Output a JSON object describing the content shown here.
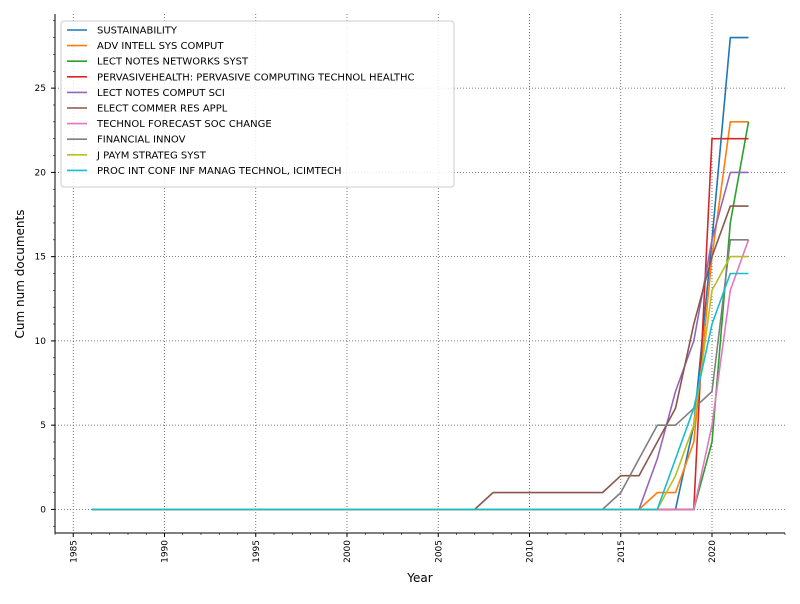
{
  "chart_data": {
    "type": "line",
    "title": "",
    "xlabel": "Year",
    "ylabel": "Cum num documents",
    "xlim": [
      1984,
      2024
    ],
    "ylim": [
      -1.4,
      29.4
    ],
    "xticks": [
      1985,
      1990,
      1995,
      2000,
      2005,
      2010,
      2015,
      2020
    ],
    "yticks": [
      0,
      5,
      10,
      15,
      20,
      25
    ],
    "grid": true,
    "legend_position": "top-left",
    "x": [
      1986,
      1987,
      1988,
      1989,
      1990,
      1991,
      1992,
      1993,
      1994,
      1995,
      1996,
      1997,
      1998,
      1999,
      2000,
      2001,
      2002,
      2003,
      2004,
      2005,
      2006,
      2007,
      2008,
      2009,
      2010,
      2011,
      2012,
      2013,
      2014,
      2015,
      2016,
      2017,
      2018,
      2019,
      2020,
      2021,
      2022
    ],
    "series": [
      {
        "name": "SUSTAINABILITY",
        "color": "#1f77b4",
        "values": [
          0,
          0,
          0,
          0,
          0,
          0,
          0,
          0,
          0,
          0,
          0,
          0,
          0,
          0,
          0,
          0,
          0,
          0,
          0,
          0,
          0,
          0,
          0,
          0,
          0,
          0,
          0,
          0,
          0,
          0,
          0,
          0,
          0,
          5,
          16,
          28,
          28
        ]
      },
      {
        "name": "ADV INTELL SYS COMPUT",
        "color": "#ff7f0e",
        "values": [
          0,
          0,
          0,
          0,
          0,
          0,
          0,
          0,
          0,
          0,
          0,
          0,
          0,
          0,
          0,
          0,
          0,
          0,
          0,
          0,
          0,
          0,
          0,
          0,
          0,
          0,
          0,
          0,
          0,
          0,
          0,
          1,
          1,
          4,
          15,
          23,
          23
        ]
      },
      {
        "name": "LECT NOTES NETWORKS SYST",
        "color": "#2ca02c",
        "values": [
          0,
          0,
          0,
          0,
          0,
          0,
          0,
          0,
          0,
          0,
          0,
          0,
          0,
          0,
          0,
          0,
          0,
          0,
          0,
          0,
          0,
          0,
          0,
          0,
          0,
          0,
          0,
          0,
          0,
          0,
          0,
          0,
          0,
          0,
          4,
          17,
          23
        ]
      },
      {
        "name": "PERVASIVEHEALTH: PERVASIVE COMPUTING TECHNOL HEALTHC",
        "color": "#d62728",
        "values": [
          0,
          0,
          0,
          0,
          0,
          0,
          0,
          0,
          0,
          0,
          0,
          0,
          0,
          0,
          0,
          0,
          0,
          0,
          0,
          0,
          0,
          0,
          0,
          0,
          0,
          0,
          0,
          0,
          0,
          0,
          0,
          0,
          0,
          0,
          22,
          22,
          22
        ]
      },
      {
        "name": "LECT NOTES COMPUT SCI",
        "color": "#9467bd",
        "values": [
          0,
          0,
          0,
          0,
          0,
          0,
          0,
          0,
          0,
          0,
          0,
          0,
          0,
          0,
          0,
          0,
          0,
          0,
          0,
          0,
          0,
          0,
          0,
          0,
          0,
          0,
          0,
          0,
          0,
          0,
          0,
          3,
          7,
          10,
          16,
          20,
          20
        ]
      },
      {
        "name": "ELECT COMMER RES APPL",
        "color": "#8c564b",
        "values": [
          0,
          0,
          0,
          0,
          0,
          0,
          0,
          0,
          0,
          0,
          0,
          0,
          0,
          0,
          0,
          0,
          0,
          0,
          0,
          0,
          0,
          0,
          1,
          1,
          1,
          1,
          1,
          1,
          1,
          2,
          2,
          4,
          6,
          11,
          15,
          18,
          18
        ]
      },
      {
        "name": "TECHNOL FORECAST SOC CHANGE",
        "color": "#e377c2",
        "values": [
          0,
          0,
          0,
          0,
          0,
          0,
          0,
          0,
          0,
          0,
          0,
          0,
          0,
          0,
          0,
          0,
          0,
          0,
          0,
          0,
          0,
          0,
          0,
          0,
          0,
          0,
          0,
          0,
          0,
          0,
          0,
          0,
          0,
          0,
          5,
          13,
          16
        ]
      },
      {
        "name": "FINANCIAL INNOV",
        "color": "#7f7f7f",
        "values": [
          0,
          0,
          0,
          0,
          0,
          0,
          0,
          0,
          0,
          0,
          0,
          0,
          0,
          0,
          0,
          0,
          0,
          0,
          0,
          0,
          0,
          0,
          0,
          0,
          0,
          0,
          0,
          0,
          0,
          1,
          3,
          5,
          5,
          6,
          7,
          16,
          16
        ]
      },
      {
        "name": "J PAYM STRATEG SYST",
        "color": "#bcbd22",
        "values": [
          0,
          0,
          0,
          0,
          0,
          0,
          0,
          0,
          0,
          0,
          0,
          0,
          0,
          0,
          0,
          0,
          0,
          0,
          0,
          0,
          0,
          0,
          0,
          0,
          0,
          0,
          0,
          0,
          0,
          0,
          0,
          0,
          2,
          5,
          13,
          15,
          15
        ]
      },
      {
        "name": "PROC INT CONF INF MANAG TECHNOL, ICIMTECH",
        "color": "#17becf",
        "values": [
          0,
          0,
          0,
          0,
          0,
          0,
          0,
          0,
          0,
          0,
          0,
          0,
          0,
          0,
          0,
          0,
          0,
          0,
          0,
          0,
          0,
          0,
          0,
          0,
          0,
          0,
          0,
          0,
          0,
          0,
          0,
          0,
          3,
          6,
          11,
          14,
          14
        ]
      }
    ]
  }
}
